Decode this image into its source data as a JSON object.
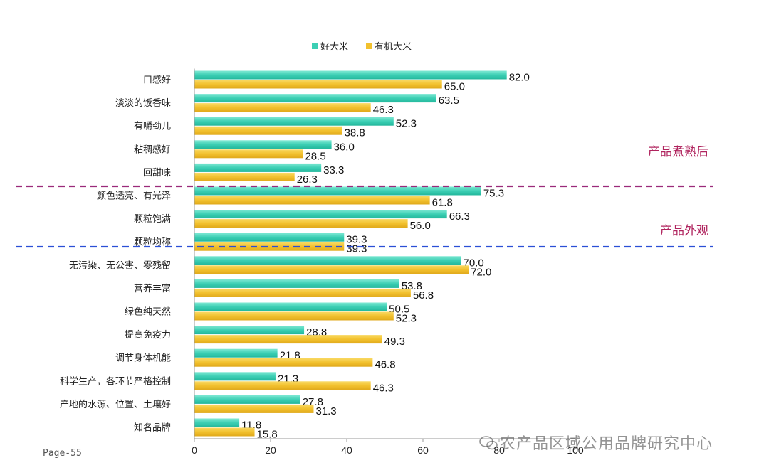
{
  "chart_data": {
    "type": "bar",
    "orientation": "horizontal",
    "categories": [
      "口感好",
      "淡淡的饭香味",
      "有嚼劲儿",
      "粘稠感好",
      "回甜味",
      "颜色透亮、有光泽",
      "颗粒饱满",
      "颗粒均称",
      "无污染、无公害、零残留",
      "营养丰富",
      "绿色纯天然",
      "提高免疫力",
      "调节身体机能",
      "科学生产，各环节严格控制",
      "产地的水源、位置、土壤好",
      "知名品牌"
    ],
    "series": [
      {
        "name": "好大米",
        "color": "#3ccfb4",
        "values": [
          82.0,
          63.5,
          52.3,
          36.0,
          33.3,
          75.3,
          66.3,
          39.3,
          70.0,
          53.8,
          50.5,
          28.8,
          21.8,
          21.3,
          27.8,
          11.8
        ]
      },
      {
        "name": "有机大米",
        "color": "#f2c12e",
        "values": [
          65.0,
          46.3,
          38.8,
          28.5,
          26.3,
          61.8,
          56.0,
          39.3,
          72.0,
          56.8,
          52.3,
          49.3,
          46.8,
          46.3,
          31.3,
          15.8
        ]
      }
    ],
    "value_labels": [
      [
        "82.0",
        "63.5",
        "52.3",
        "36.0",
        "33.3",
        "75.3",
        "66.3",
        "39.3",
        "70.0",
        "53.8",
        "50.5",
        "28.8",
        "21.8",
        "21.3",
        "27.8",
        "11.8"
      ],
      [
        "65.0",
        "46.3",
        "38.8",
        "28.5",
        "26.3",
        "61.8",
        "56.0",
        "39.3",
        "72.0",
        "56.8",
        "52.3",
        "49.3",
        "46.8",
        "46.3",
        "31.3",
        "15.8"
      ]
    ],
    "xlim": [
      0,
      100
    ],
    "xticks": [
      "0",
      "20",
      "40",
      "60",
      "80",
      "100"
    ],
    "legend_position": "top-center",
    "grid": false,
    "sections": [
      {
        "label": "产品煮熟后",
        "divider_color": "#9b2a7a"
      },
      {
        "label": "产品外观",
        "divider_color": "#2b4fd6"
      }
    ]
  },
  "footer": {
    "page_label": "Page-55",
    "watermark": "农产品区域公用品牌研究中心"
  }
}
